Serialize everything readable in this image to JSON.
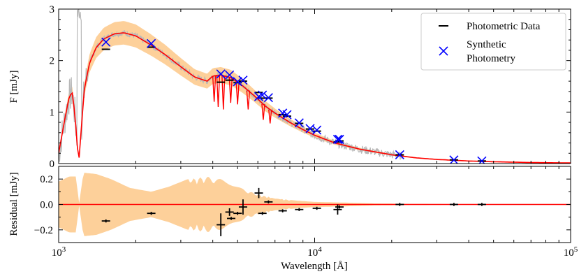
{
  "chart_data": [
    {
      "type": "line",
      "panel": "top",
      "ylabel": "F   [mJy]",
      "xscale": "log",
      "xlim": [
        1000,
        100000
      ],
      "ylim": [
        0,
        3
      ],
      "yticks": [
        0,
        1,
        2,
        3
      ],
      "ytick_labels": [
        "0",
        "1",
        "2",
        "3"
      ],
      "grid": false,
      "legend": {
        "placement": "top-right",
        "entries": [
          {
            "marker": "dash",
            "color": "#000000",
            "label_lines": [
              "Photometric Data"
            ]
          },
          {
            "marker": "x",
            "color": "#0000ff",
            "label_lines": [
              "Synthetic",
              "Photometry"
            ]
          }
        ]
      },
      "colors": {
        "model": "#ff0000",
        "band": "#fdd09a",
        "spectrum": "#b8b8b8",
        "data": "#000000",
        "synthetic": "#0000ff"
      },
      "model_line": {
        "x": [
          1000,
          1060,
          1100,
          1130,
          1160,
          1190,
          1200,
          1220,
          1260,
          1320,
          1400,
          1500,
          1650,
          1800,
          2000,
          2300,
          2600,
          3000,
          3400,
          3800,
          4000,
          4300,
          4700,
          5200,
          5800,
          6400,
          7000,
          8000,
          9000,
          10000,
          12000,
          15000,
          20000,
          25000,
          30000,
          40000,
          50000,
          70000,
          100000
        ],
        "y": [
          0.2,
          0.9,
          1.3,
          1.38,
          0.9,
          0.15,
          0.06,
          0.55,
          1.45,
          1.95,
          2.25,
          2.42,
          2.52,
          2.54,
          2.48,
          2.3,
          2.12,
          1.88,
          1.68,
          1.6,
          1.7,
          1.72,
          1.67,
          1.52,
          1.32,
          1.12,
          0.98,
          0.8,
          0.66,
          0.55,
          0.4,
          0.28,
          0.17,
          0.11,
          0.08,
          0.05,
          0.035,
          0.02,
          0.012
        ]
      },
      "absorption_dips": [
        {
          "x": 4050,
          "y": 1.2
        },
        {
          "x": 4200,
          "y": 1.1
        },
        {
          "x": 4400,
          "y": 1.05
        },
        {
          "x": 4700,
          "y": 1.18
        },
        {
          "x": 5000,
          "y": 1.15
        },
        {
          "x": 5500,
          "y": 1.05
        },
        {
          "x": 6300,
          "y": 0.85
        },
        {
          "x": 6700,
          "y": 0.78
        }
      ],
      "photometric_data": [
        {
          "x": 1530,
          "y": 2.22
        },
        {
          "x": 2300,
          "y": 2.26
        },
        {
          "x": 4300,
          "y": 1.58
        },
        {
          "x": 4650,
          "y": 1.62
        },
        {
          "x": 5000,
          "y": 1.57
        },
        {
          "x": 5250,
          "y": 1.6
        },
        {
          "x": 6050,
          "y": 1.38
        },
        {
          "x": 6250,
          "y": 1.27
        },
        {
          "x": 6600,
          "y": 1.27
        },
        {
          "x": 7500,
          "y": 0.95
        },
        {
          "x": 7800,
          "y": 0.92
        },
        {
          "x": 8700,
          "y": 0.78
        },
        {
          "x": 9600,
          "y": 0.67
        },
        {
          "x": 10200,
          "y": 0.63
        },
        {
          "x": 12300,
          "y": 0.42
        },
        {
          "x": 12500,
          "y": 0.44
        },
        {
          "x": 21500,
          "y": 0.17
        },
        {
          "x": 35000,
          "y": 0.07
        },
        {
          "x": 45000,
          "y": 0.05
        }
      ],
      "synthetic_photometry": [
        {
          "x": 1530,
          "y": 2.36
        },
        {
          "x": 2300,
          "y": 2.33
        },
        {
          "x": 4300,
          "y": 1.74
        },
        {
          "x": 4650,
          "y": 1.72
        },
        {
          "x": 5000,
          "y": 1.59
        },
        {
          "x": 5250,
          "y": 1.62
        },
        {
          "x": 6050,
          "y": 1.3
        },
        {
          "x": 6250,
          "y": 1.33
        },
        {
          "x": 6600,
          "y": 1.28
        },
        {
          "x": 7500,
          "y": 0.98
        },
        {
          "x": 7800,
          "y": 0.95
        },
        {
          "x": 8700,
          "y": 0.79
        },
        {
          "x": 9600,
          "y": 0.68
        },
        {
          "x": 10200,
          "y": 0.65
        },
        {
          "x": 12300,
          "y": 0.47
        },
        {
          "x": 12500,
          "y": 0.47
        },
        {
          "x": 21500,
          "y": 0.17
        },
        {
          "x": 35000,
          "y": 0.07
        },
        {
          "x": 45000,
          "y": 0.05
        }
      ]
    },
    {
      "type": "scatter",
      "panel": "bottom",
      "xlabel": "Wavelength [Å]",
      "ylabel": "Residual [mJy]",
      "xscale": "log",
      "xlim": [
        1000,
        100000
      ],
      "ylim": [
        -0.3,
        0.3
      ],
      "yticks": [
        0.2,
        0.0,
        -0.2
      ],
      "ytick_labels": [
        "0.2",
        "0.0",
        "−0.2"
      ],
      "xticks": [
        1000,
        10000,
        100000
      ],
      "xtick_labels": [
        {
          "base": "10",
          "exp": "3"
        },
        {
          "base": "10",
          "exp": "4"
        },
        {
          "base": "10",
          "exp": "5"
        }
      ],
      "grid": false,
      "zero_line_color": "#ff0000",
      "residuals": [
        {
          "x": 1530,
          "y": -0.13,
          "yerr": 0.005
        },
        {
          "x": 2300,
          "y": -0.07,
          "yerr": 0.005
        },
        {
          "x": 4300,
          "y": -0.16,
          "yerr": 0.09
        },
        {
          "x": 4650,
          "y": -0.06,
          "yerr": 0.03
        },
        {
          "x": 4720,
          "y": -0.11,
          "yerr": 0.005
        },
        {
          "x": 5000,
          "y": -0.07,
          "yerr": 0.01
        },
        {
          "x": 5250,
          "y": -0.02,
          "yerr": 0.06
        },
        {
          "x": 6050,
          "y": 0.09,
          "yerr": 0.04
        },
        {
          "x": 6250,
          "y": -0.07,
          "yerr": 0.005
        },
        {
          "x": 6600,
          "y": 0.02,
          "yerr": 0.005
        },
        {
          "x": 7500,
          "y": -0.05,
          "yerr": 0.005
        },
        {
          "x": 8700,
          "y": -0.04,
          "yerr": 0.005
        },
        {
          "x": 10200,
          "y": -0.03,
          "yerr": 0.005
        },
        {
          "x": 12300,
          "y": -0.04,
          "yerr": 0.04
        },
        {
          "x": 12500,
          "y": -0.02,
          "yerr": 0.005
        },
        {
          "x": 21500,
          "y": 0.0,
          "yerr": 0.003
        },
        {
          "x": 35000,
          "y": 0.0,
          "yerr": 0.003
        },
        {
          "x": 45000,
          "y": 0.0,
          "yerr": 0.003
        }
      ],
      "uncertainty_band": {
        "x": [
          1000,
          1100,
          1170,
          1200,
          1250,
          1400,
          1600,
          1900,
          2300,
          2700,
          3200,
          3800,
          4300,
          5000,
          6000,
          7000,
          8500,
          10000,
          13000,
          17000,
          25000,
          40000,
          100000
        ],
        "half_width": [
          0.18,
          0.22,
          0.22,
          0.0,
          0.25,
          0.24,
          0.2,
          0.13,
          0.1,
          0.14,
          0.2,
          0.22,
          0.2,
          0.14,
          0.08,
          0.05,
          0.03,
          0.02,
          0.015,
          0.008,
          0.004,
          0.002,
          0.001
        ]
      }
    }
  ]
}
